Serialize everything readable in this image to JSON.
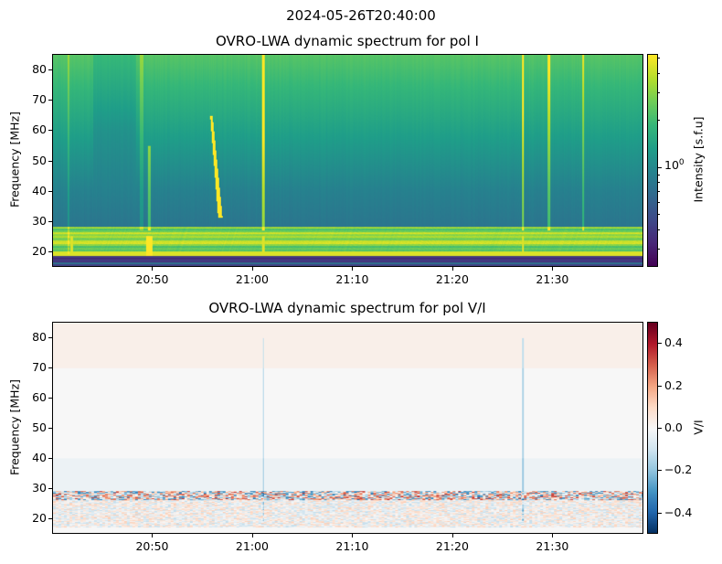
{
  "figure": {
    "suptitle": "2024-05-26T20:40:00"
  },
  "chart_data": [
    {
      "type": "heatmap",
      "title": "OVRO-LWA dynamic spectrum for pol I",
      "xlabel": "",
      "ylabel": "Frequency [MHz]",
      "xlim": [
        "20:40",
        "21:39"
      ],
      "ylim": [
        15,
        85
      ],
      "xticks": [
        "20:50",
        "21:00",
        "21:10",
        "21:20",
        "21:30"
      ],
      "yticks": [
        20,
        30,
        40,
        50,
        60,
        70,
        80
      ],
      "colormap": "viridis",
      "colorbar": {
        "label": "Intensity [s.f.u]",
        "scale": "log",
        "range": [
          0.23,
          5.3
        ],
        "tick_label": "10^0",
        "tick_value": 1
      }
    },
    {
      "type": "heatmap",
      "title": "OVRO-LWA dynamic spectrum for pol V/I",
      "xlabel": "",
      "ylabel": "Frequency [MHz]",
      "xlim": [
        "20:40",
        "21:39"
      ],
      "ylim": [
        15,
        85
      ],
      "xticks": [
        "20:50",
        "21:00",
        "21:10",
        "21:20",
        "21:30"
      ],
      "yticks": [
        20,
        30,
        40,
        50,
        60,
        70,
        80
      ],
      "colormap": "RdBu_r",
      "colorbar": {
        "label": "V/I",
        "scale": "linear",
        "range": [
          -0.5,
          0.5
        ],
        "ticks": [
          "0.4",
          "0.2",
          "0.0",
          "−0.2",
          "−0.4"
        ],
        "tick_values": [
          0.4,
          0.2,
          0.0,
          -0.2,
          -0.4
        ]
      }
    }
  ]
}
